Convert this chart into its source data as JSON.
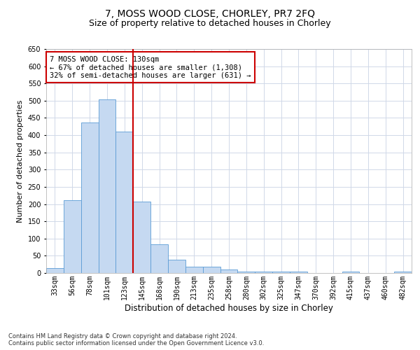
{
  "title": "7, MOSS WOOD CLOSE, CHORLEY, PR7 2FQ",
  "subtitle": "Size of property relative to detached houses in Chorley",
  "xlabel": "Distribution of detached houses by size in Chorley",
  "ylabel": "Number of detached properties",
  "categories": [
    "33sqm",
    "56sqm",
    "78sqm",
    "101sqm",
    "123sqm",
    "145sqm",
    "168sqm",
    "190sqm",
    "213sqm",
    "235sqm",
    "258sqm",
    "280sqm",
    "302sqm",
    "325sqm",
    "347sqm",
    "370sqm",
    "392sqm",
    "415sqm",
    "437sqm",
    "460sqm",
    "482sqm"
  ],
  "values": [
    15,
    212,
    436,
    503,
    410,
    207,
    83,
    38,
    19,
    18,
    10,
    5,
    5,
    5,
    5,
    0,
    0,
    5,
    0,
    0,
    4
  ],
  "bar_color": "#c5d9f1",
  "bar_edge_color": "#5b9bd5",
  "grid_color": "#d0d8e8",
  "vline_color": "#cc0000",
  "vline_pos": 4.5,
  "annotation_line1": "7 MOSS WOOD CLOSE: 130sqm",
  "annotation_line2": "← 67% of detached houses are smaller (1,308)",
  "annotation_line3": "32% of semi-detached houses are larger (631) →",
  "annotation_box_color": "#ffffff",
  "annotation_box_edge_color": "#cc0000",
  "ylim": [
    0,
    650
  ],
  "yticks": [
    0,
    50,
    100,
    150,
    200,
    250,
    300,
    350,
    400,
    450,
    500,
    550,
    600,
    650
  ],
  "footnote": "Contains HM Land Registry data © Crown copyright and database right 2024.\nContains public sector information licensed under the Open Government Licence v3.0.",
  "title_fontsize": 10,
  "subtitle_fontsize": 9,
  "xlabel_fontsize": 8.5,
  "ylabel_fontsize": 8,
  "tick_fontsize": 7,
  "annotation_fontsize": 7.5,
  "footnote_fontsize": 6
}
